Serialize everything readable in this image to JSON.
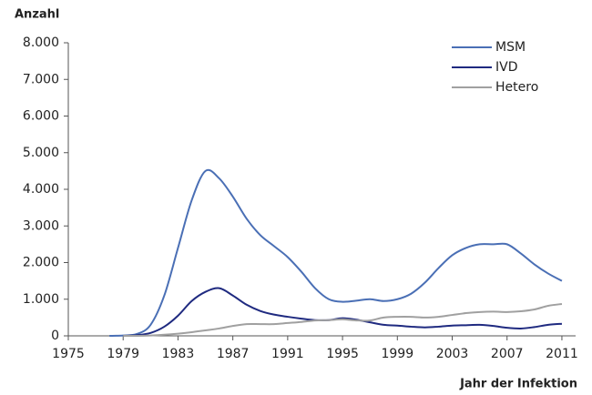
{
  "chart_data": {
    "type": "line",
    "y_label": "Anzahl",
    "x_label": "Jahr der Infektion",
    "x": [
      1978,
      1979,
      1980,
      1981,
      1982,
      1983,
      1984,
      1985,
      1986,
      1987,
      1988,
      1989,
      1990,
      1991,
      1992,
      1993,
      1994,
      1995,
      1996,
      1997,
      1998,
      1999,
      2000,
      2001,
      2002,
      2003,
      2004,
      2005,
      2006,
      2007,
      2008,
      2009,
      2010,
      2011
    ],
    "series": [
      {
        "name": "MSM",
        "color": "#4a6fb5",
        "values": [
          0,
          10,
          50,
          300,
          1100,
          2400,
          3700,
          4500,
          4300,
          3800,
          3200,
          2750,
          2450,
          2150,
          1750,
          1300,
          1000,
          930,
          960,
          1000,
          950,
          1000,
          1150,
          1450,
          1850,
          2200,
          2400,
          2500,
          2500,
          2500,
          2250,
          1950,
          1700,
          1500
        ]
      },
      {
        "name": "IVD",
        "color": "#1f2a80",
        "values": [
          null,
          0,
          20,
          80,
          250,
          550,
          950,
          1200,
          1300,
          1100,
          850,
          680,
          580,
          520,
          470,
          430,
          430,
          480,
          440,
          370,
          300,
          280,
          250,
          230,
          250,
          280,
          290,
          300,
          270,
          220,
          200,
          240,
          300,
          330
        ]
      },
      {
        "name": "Hetero",
        "color": "#a0a0a0",
        "values": [
          null,
          0,
          0,
          10,
          30,
          60,
          100,
          150,
          200,
          270,
          320,
          320,
          320,
          350,
          380,
          420,
          430,
          450,
          420,
          420,
          500,
          520,
          520,
          500,
          520,
          570,
          620,
          650,
          660,
          650,
          670,
          720,
          820,
          870
        ]
      }
    ],
    "xlim": [
      1975,
      2012
    ],
    "ylim": [
      0,
      8000
    ],
    "xticks": [
      1975,
      1979,
      1983,
      1987,
      1991,
      1995,
      1999,
      2003,
      2007,
      2011
    ],
    "yticks": [
      0,
      {
        "value": 1000,
        "label": "1.000"
      },
      {
        "value": 2000,
        "label": "2.000"
      },
      {
        "value": 3000,
        "label": "3.000"
      },
      {
        "value": 4000,
        "label": "4.000"
      },
      {
        "value": 5000,
        "label": "5.000"
      },
      {
        "value": 6000,
        "label": "6.000"
      },
      {
        "value": 7000,
        "label": "7.000"
      },
      {
        "value": 8000,
        "label": "8.000"
      }
    ],
    "grid": false,
    "legend": "top-right"
  }
}
